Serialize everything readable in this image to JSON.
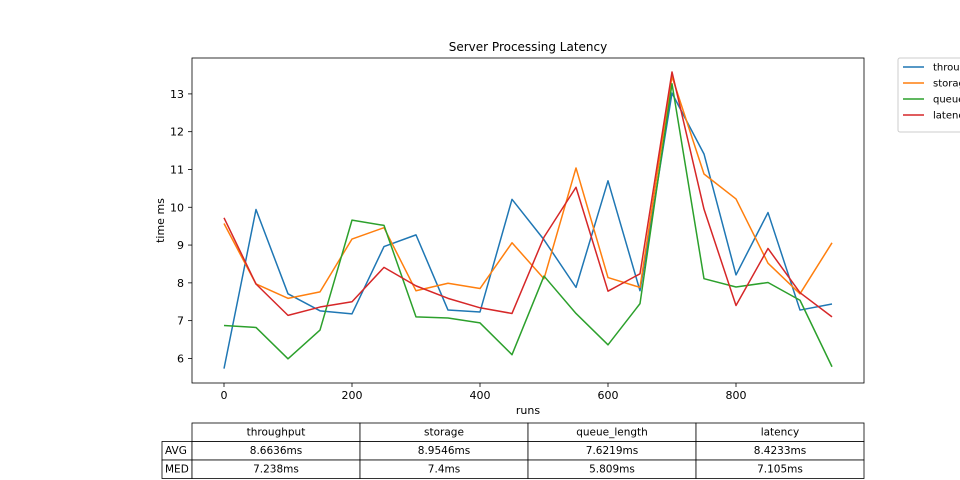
{
  "chart_data": {
    "type": "line",
    "title": "Server Processing Latency",
    "xlabel": "runs",
    "ylabel": "time ms",
    "xlim": [
      -50,
      1000
    ],
    "ylim": [
      5.35,
      13.95
    ],
    "xticks": [
      0,
      200,
      400,
      600,
      800
    ],
    "yticks": [
      6,
      7,
      8,
      9,
      10,
      11,
      12,
      13
    ],
    "grid": false,
    "legend_position": "outside-right",
    "x": [
      0,
      50,
      100,
      150,
      200,
      250,
      300,
      350,
      400,
      450,
      500,
      550,
      600,
      650,
      700,
      750,
      800,
      850,
      900,
      950
    ],
    "series": [
      {
        "name": "throughput",
        "color": "#1f77b4",
        "values": [
          5.73,
          9.94,
          7.71,
          7.26,
          7.18,
          8.96,
          9.27,
          7.28,
          7.23,
          10.21,
          9.14,
          7.88,
          10.7,
          7.79,
          13.02,
          11.41,
          8.21,
          9.86,
          7.28,
          7.44
        ]
      },
      {
        "name": "storage",
        "color": "#ff7f0e",
        "values": [
          9.57,
          7.97,
          7.59,
          7.76,
          9.16,
          9.46,
          7.79,
          7.99,
          7.85,
          9.06,
          8.11,
          11.04,
          8.14,
          7.88,
          13.46,
          10.88,
          10.22,
          8.52,
          7.71,
          9.06
        ]
      },
      {
        "name": "queue_length",
        "color": "#2ca02c",
        "values": [
          6.87,
          6.82,
          5.99,
          6.75,
          9.66,
          9.52,
          7.1,
          7.07,
          6.94,
          6.1,
          8.18,
          7.19,
          6.36,
          7.45,
          13.27,
          8.11,
          7.89,
          8.01,
          7.54,
          5.78
        ]
      },
      {
        "name": "latency",
        "color": "#d62728",
        "values": [
          9.72,
          7.97,
          7.14,
          7.36,
          7.5,
          8.41,
          7.92,
          7.59,
          7.34,
          7.19,
          9.21,
          10.53,
          7.78,
          8.24,
          13.58,
          9.95,
          7.4,
          8.91,
          7.74,
          7.1
        ]
      }
    ],
    "table": {
      "columns": [
        "throughput",
        "storage",
        "queue_length",
        "latency"
      ],
      "rows": [
        {
          "label": "AVG",
          "cells": [
            "8.6636ms",
            "8.9546ms",
            "7.6219ms",
            "8.4233ms"
          ]
        },
        {
          "label": "MED",
          "cells": [
            "7.238ms",
            "7.4ms",
            "5.809ms",
            "7.105ms"
          ]
        }
      ]
    }
  }
}
